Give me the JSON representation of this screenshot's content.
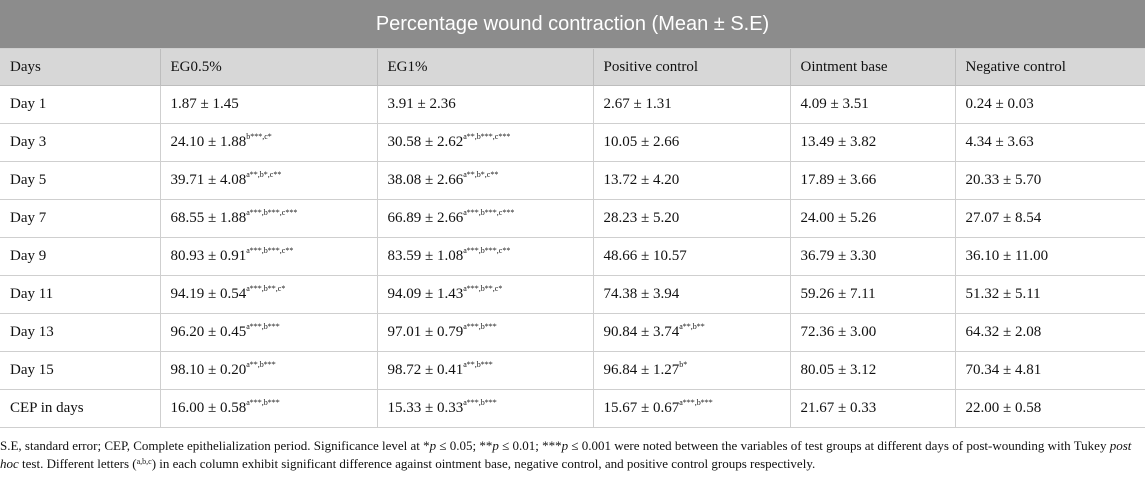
{
  "table": {
    "title": "Percentage wound contraction (Mean ± S.E)",
    "columns": [
      "Days",
      "EG0.5%",
      "EG1%",
      "Positive control",
      "Ointment base",
      "Negative control"
    ],
    "rows": [
      {
        "day": "Day 1",
        "cells": [
          {
            "v": "1.87 ± 1.45",
            "s": ""
          },
          {
            "v": "3.91 ± 2.36",
            "s": ""
          },
          {
            "v": "2.67 ± 1.31",
            "s": ""
          },
          {
            "v": "4.09 ± 3.51",
            "s": ""
          },
          {
            "v": "0.24 ± 0.03",
            "s": ""
          }
        ]
      },
      {
        "day": "Day 3",
        "cells": [
          {
            "v": "24.10 ± 1.88",
            "s": "b***,c*"
          },
          {
            "v": "30.58 ± 2.62",
            "s": "a**,b***,c***"
          },
          {
            "v": "10.05 ± 2.66",
            "s": ""
          },
          {
            "v": "13.49 ± 3.82",
            "s": ""
          },
          {
            "v": "4.34 ± 3.63",
            "s": ""
          }
        ]
      },
      {
        "day": "Day 5",
        "cells": [
          {
            "v": "39.71 ± 4.08",
            "s": "a**,b*,c**"
          },
          {
            "v": "38.08 ± 2.66",
            "s": "a**,b*,c**"
          },
          {
            "v": "13.72 ± 4.20",
            "s": ""
          },
          {
            "v": "17.89 ± 3.66",
            "s": ""
          },
          {
            "v": "20.33 ± 5.70",
            "s": ""
          }
        ]
      },
      {
        "day": "Day 7",
        "cells": [
          {
            "v": "68.55 ± 1.88",
            "s": "a***,b***,c***"
          },
          {
            "v": "66.89 ± 2.66",
            "s": "a***,b***,c***"
          },
          {
            "v": "28.23 ± 5.20",
            "s": ""
          },
          {
            "v": "24.00 ± 5.26",
            "s": ""
          },
          {
            "v": "27.07 ± 8.54",
            "s": ""
          }
        ]
      },
      {
        "day": "Day 9",
        "cells": [
          {
            "v": "80.93 ± 0.91",
            "s": "a***,b***,c**"
          },
          {
            "v": "83.59 ± 1.08",
            "s": "a***,b***,c**"
          },
          {
            "v": "48.66 ± 10.57",
            "s": ""
          },
          {
            "v": "36.79 ± 3.30",
            "s": ""
          },
          {
            "v": "36.10 ± 11.00",
            "s": ""
          }
        ]
      },
      {
        "day": "Day 11",
        "cells": [
          {
            "v": "94.19 ± 0.54",
            "s": "a***,b**,c*"
          },
          {
            "v": "94.09 ± 1.43",
            "s": "a***,b**,c*"
          },
          {
            "v": "74.38 ± 3.94",
            "s": ""
          },
          {
            "v": "59.26 ± 7.11",
            "s": ""
          },
          {
            "v": "51.32 ± 5.11",
            "s": ""
          }
        ]
      },
      {
        "day": "Day 13",
        "cells": [
          {
            "v": "96.20 ± 0.45",
            "s": "a***,b***"
          },
          {
            "v": "97.01 ± 0.79",
            "s": "a***,b***"
          },
          {
            "v": "90.84 ± 3.74",
            "s": "a**,b**"
          },
          {
            "v": "72.36 ± 3.00",
            "s": ""
          },
          {
            "v": "64.32 ± 2.08",
            "s": ""
          }
        ]
      },
      {
        "day": "Day 15",
        "cells": [
          {
            "v": "98.10 ± 0.20",
            "s": "a**,b***"
          },
          {
            "v": "98.72 ± 0.41",
            "s": "a**,b***"
          },
          {
            "v": "96.84 ± 1.27",
            "s": "b*"
          },
          {
            "v": "80.05 ± 3.12",
            "s": ""
          },
          {
            "v": "70.34 ± 4.81",
            "s": ""
          }
        ]
      },
      {
        "day": "CEP in days",
        "cells": [
          {
            "v": "16.00 ± 0.58",
            "s": "a***,b***"
          },
          {
            "v": "15.33 ± 0.33",
            "s": "a***,b***"
          },
          {
            "v": "15.67 ± 0.67",
            "s": "a***,b***"
          },
          {
            "v": "21.67 ± 0.33",
            "s": ""
          },
          {
            "v": "22.00 ± 0.58",
            "s": ""
          }
        ]
      }
    ]
  },
  "footnote": {
    "p1": "S.E, standard error; CEP, Complete epithelialization period. Significance level at *",
    "p_sym": "p",
    "p2": " ≤ 0.05; **",
    "p3": " ≤ 0.01; ***",
    "p4": " ≤ 0.001 were noted between the variables of test groups at different days of post-wounding with Tukey ",
    "posthoc": "post hoc",
    "p5": " test. Different letters (",
    "letters": "a,b,c",
    "p6": ") in each column exhibit significant difference against ointment base, negative control, and positive control groups respectively."
  }
}
